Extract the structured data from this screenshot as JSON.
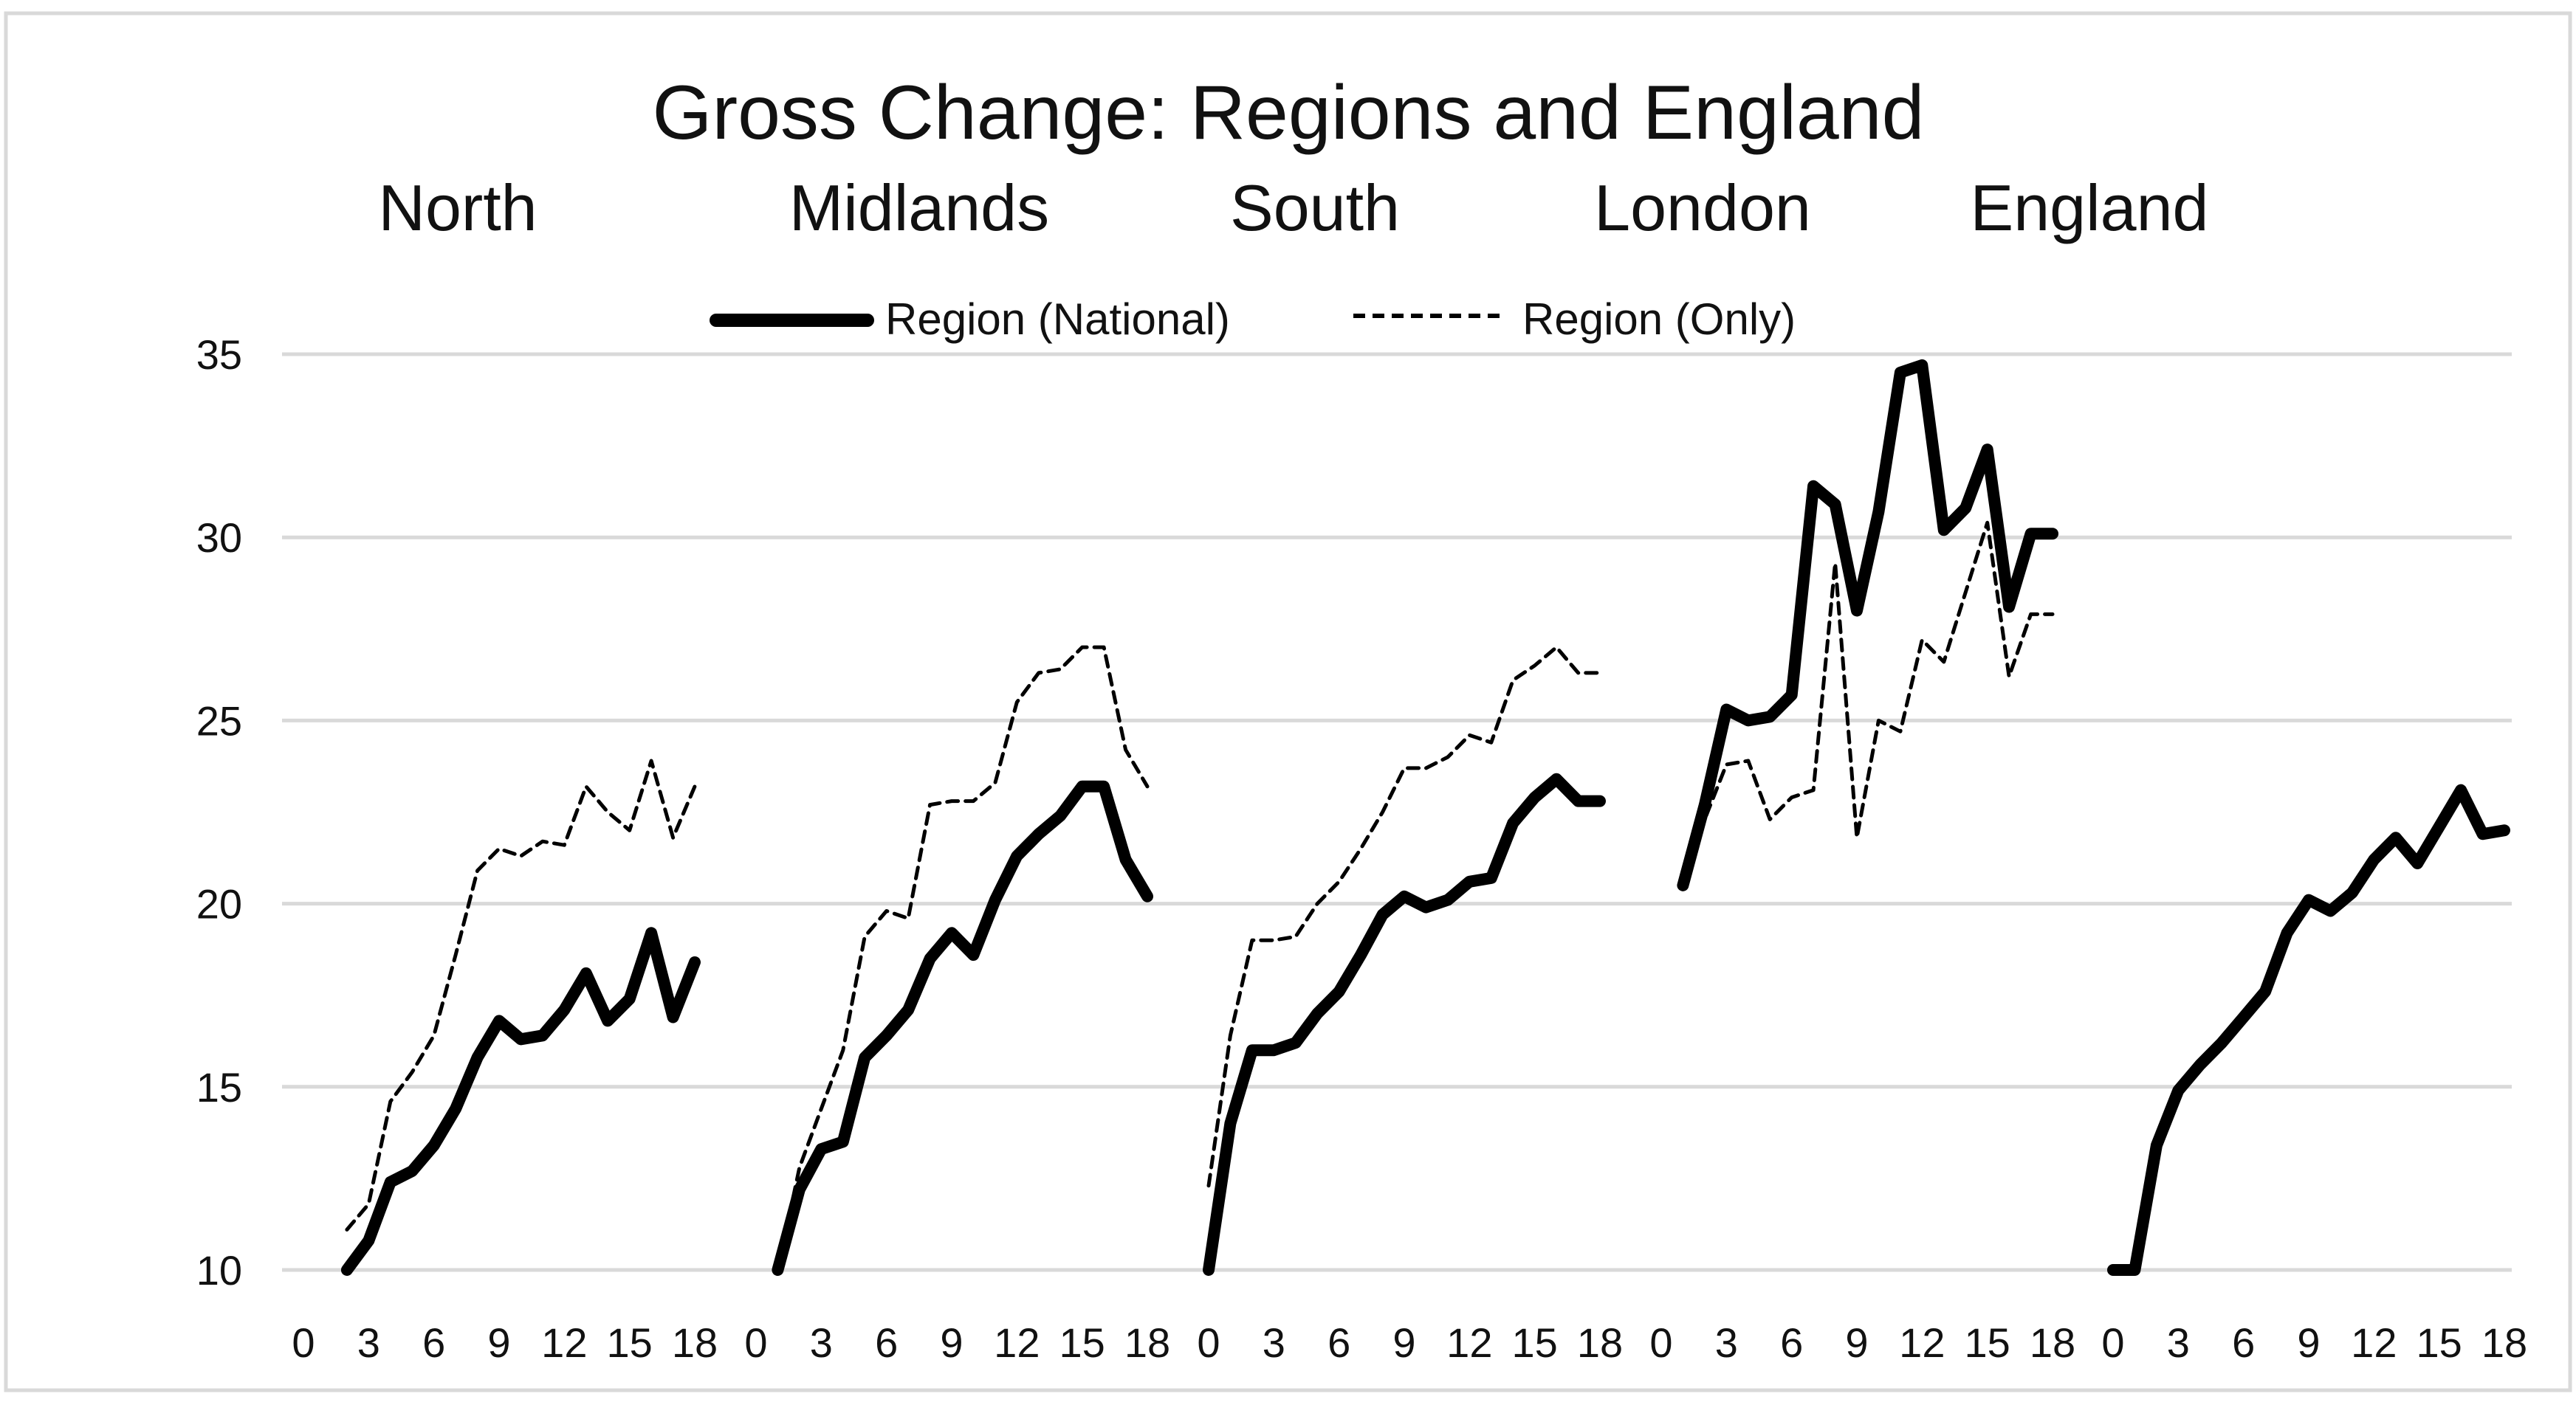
{
  "chart_data": {
    "type": "line",
    "title": "Gross Change: Regions and England",
    "panels": [
      "North",
      "Midlands",
      "South",
      "London",
      "England"
    ],
    "legend": {
      "position": "top-center",
      "entries": [
        "Region (National)",
        "Region (Only)"
      ]
    },
    "x_tick_labels": [
      "0",
      "3",
      "6",
      "9",
      "12",
      "15",
      "18"
    ],
    "y_ticks": [
      10,
      15,
      20,
      25,
      30,
      35
    ],
    "ylim": [
      10,
      35
    ],
    "xlim": [
      0,
      18
    ],
    "grid": "horizontal",
    "series": [
      {
        "name": "Region (National)",
        "style": "solid-thick",
        "color": "#000000",
        "panels": {
          "North": {
            "x": [
              2,
              3,
              4,
              5,
              6,
              7,
              8,
              9,
              10,
              11,
              12,
              13,
              14,
              15,
              16,
              17,
              18
            ],
            "y": [
              9.7,
              10.8,
              12.4,
              12.7,
              13.4,
              14.4,
              15.8,
              16.8,
              16.3,
              16.4,
              17.1,
              18.1,
              16.8,
              17.4,
              19.2,
              16.9,
              18.4
            ]
          },
          "Midlands": {
            "x": [
              1,
              2,
              3,
              4,
              5,
              6,
              7,
              8,
              9,
              10,
              11,
              12,
              13,
              14,
              15,
              16,
              17,
              18
            ],
            "y": [
              10.0,
              12.2,
              13.3,
              13.5,
              15.8,
              16.4,
              17.1,
              18.5,
              19.2,
              18.6,
              20.1,
              21.3,
              21.9,
              22.4,
              23.2,
              23.2,
              21.2,
              20.2
            ]
          },
          "South": {
            "x": [
              0,
              1,
              2,
              3,
              4,
              5,
              6,
              7,
              8,
              9,
              10,
              11,
              12,
              13,
              14,
              15,
              16,
              17,
              18
            ],
            "y": [
              10.0,
              14.0,
              16.0,
              16.0,
              16.2,
              17.0,
              17.6,
              18.6,
              19.7,
              20.2,
              19.9,
              20.1,
              20.6,
              20.7,
              22.2,
              22.9,
              23.4,
              22.8,
              22.8
            ]
          },
          "London": {
            "x": [
              1,
              2,
              3,
              4,
              5,
              6,
              7,
              8,
              9,
              10,
              11,
              12,
              13,
              14,
              15,
              16,
              17,
              18
            ],
            "y": [
              20.5,
              22.7,
              25.3,
              25.0,
              25.1,
              25.7,
              31.4,
              30.9,
              28.0,
              30.7,
              34.5,
              34.7,
              30.2,
              30.8,
              32.4,
              28.1,
              30.1,
              30.1
            ]
          },
          "England": {
            "x": [
              0,
              1,
              2,
              3,
              4,
              5,
              6,
              7,
              8,
              9,
              10,
              11,
              12,
              13,
              14,
              15,
              16,
              17,
              18
            ],
            "y": [
              9.5,
              10.0,
              13.4,
              14.9,
              15.6,
              16.2,
              16.9,
              17.6,
              19.2,
              20.1,
              19.8,
              20.3,
              21.2,
              21.8,
              21.1,
              22.1,
              23.1,
              21.9,
              22.0
            ]
          }
        }
      },
      {
        "name": "Region (Only)",
        "style": "dashed",
        "color": "#000000",
        "panels": {
          "North": {
            "x": [
              2,
              3,
              4,
              5,
              6,
              7,
              8,
              9,
              10,
              11,
              12,
              13,
              14,
              15,
              16,
              17,
              18
            ],
            "y": [
              11.1,
              11.8,
              14.6,
              15.4,
              16.4,
              18.6,
              20.9,
              21.5,
              21.3,
              21.7,
              21.6,
              23.2,
              22.5,
              22.0,
              23.9,
              21.8,
              23.2
            ]
          },
          "Midlands": {
            "x": [
              1,
              2,
              3,
              4,
              5,
              6,
              7,
              8,
              9,
              10,
              11,
              12,
              13,
              14,
              15,
              16,
              17,
              18
            ],
            "y": [
              10.0,
              12.8,
              14.4,
              16.0,
              19.1,
              19.8,
              19.6,
              22.7,
              22.8,
              22.8,
              23.3,
              25.5,
              26.3,
              26.4,
              27.0,
              27.0,
              24.2,
              23.2
            ]
          },
          "South": {
            "x": [
              0,
              1,
              2,
              3,
              4,
              5,
              6,
              7,
              8,
              9,
              10,
              11,
              12,
              13,
              14,
              15,
              16,
              17,
              18
            ],
            "y": [
              12.3,
              16.4,
              19.0,
              19.0,
              19.1,
              20.0,
              20.6,
              21.5,
              22.5,
              23.7,
              23.7,
              24.0,
              24.6,
              24.4,
              26.1,
              26.5,
              27.0,
              26.3,
              26.3
            ]
          },
          "London": {
            "x": [
              1,
              2,
              3,
              4,
              5,
              6,
              7,
              8,
              9,
              10,
              11,
              12,
              13,
              14,
              15,
              16,
              17,
              18
            ],
            "y": [
              20.5,
              22.3,
              23.8,
              23.9,
              22.3,
              22.9,
              23.1,
              29.3,
              21.8,
              25.0,
              24.7,
              27.2,
              26.6,
              28.5,
              30.4,
              26.2,
              27.9,
              27.9
            ]
          }
        }
      }
    ]
  }
}
